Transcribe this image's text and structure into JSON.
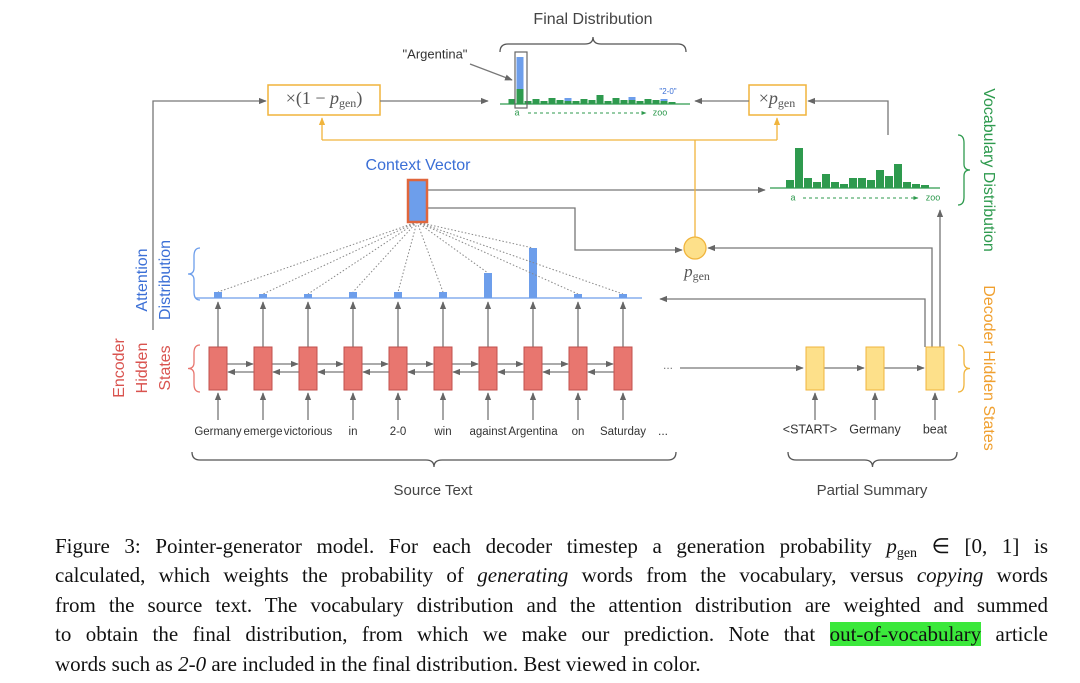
{
  "figure": {
    "final_distribution": {
      "title": "Final Distribution",
      "argentina_label": "\"Argentina\"",
      "oov_label": "\"2-0\"",
      "axis_start": "a",
      "axis_end": "zoo"
    },
    "vocabulary_distribution": {
      "title": "Vocabulary Distribution",
      "axis_start": "a",
      "axis_end": "zoo"
    },
    "context_vector": "Context Vector",
    "attention_distribution": [
      "Attention",
      "Distribution"
    ],
    "encoder_hidden_states": [
      "Encoder",
      "Hidden",
      "States"
    ],
    "decoder_hidden_states": "Decoder Hidden States",
    "weight_copy": {
      "prefix": "×(1 − ",
      "symbol": "p",
      "subscript": "gen",
      "suffix": ")"
    },
    "weight_gen": {
      "prefix": "×",
      "symbol": "p",
      "subscript": "gen"
    },
    "pgen": {
      "symbol": "p",
      "subscript": "gen"
    },
    "source_words": [
      "Germany",
      "emerge",
      "victorious",
      "in",
      "2-0",
      "win",
      "against",
      "Argentina",
      "on",
      "Saturday"
    ],
    "source_ellipsis": "...",
    "encoder_ellipsis": "...",
    "decoder_words": [
      "<START>",
      "Germany",
      "beat"
    ],
    "source_text_label": "Source Text",
    "partial_summary_label": "Partial Summary"
  },
  "caption": {
    "lines": [
      [
        "Figure 3: Pointer-generator model. For each decoder timestep a generation probability ",
        "p",
        "gen",
        " ∈ [0, 1] is"
      ],
      [
        "calculated, which weights the probability of ",
        "generating",
        " words from the vocabulary, versus ",
        "copying",
        " words"
      ],
      [
        "from the source text. The vocabulary distribution and the attention distribution are weighted and summed"
      ],
      [
        "to obtain the final distribution, from which we make our prediction. Note that ",
        "out-of-vocabulary",
        " article"
      ],
      [
        "words such as ",
        "2-0",
        " are included in the final distribution. Best viewed in color."
      ]
    ]
  }
}
